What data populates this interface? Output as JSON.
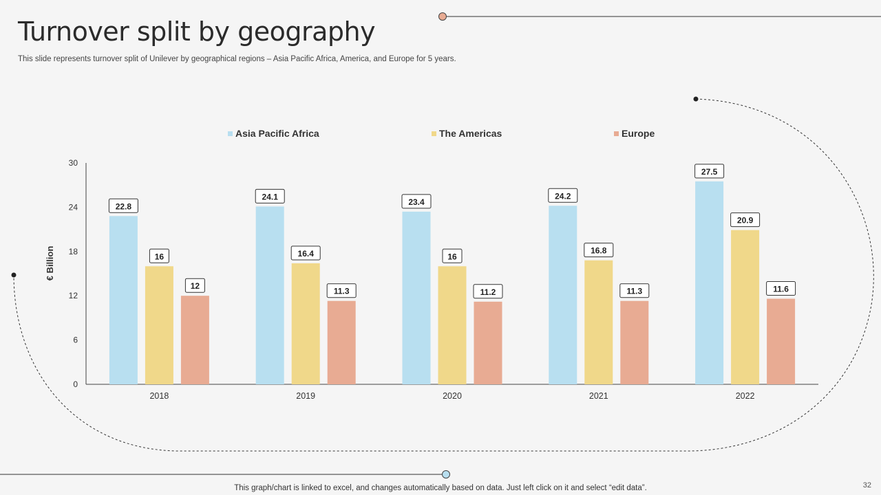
{
  "header": {
    "title": "Turnover split by geography",
    "subtitle": "This slide represents turnover split of Unilever by geographical regions – Asia Pacific Africa, America, and Europe for 5 years."
  },
  "footer": {
    "note": "This graph/chart is linked to excel, and changes automatically based on data. Just left click on it and select “edit data”.",
    "page_number": "32"
  },
  "colors": {
    "asia": "#b8dff0",
    "americas": "#f0d88a",
    "europe": "#e8ab93",
    "deco_dot_top": "#e8ab93",
    "deco_dot_bottom": "#b8dff0"
  },
  "chart_data": {
    "type": "bar",
    "categories": [
      "2018",
      "2019",
      "2020",
      "2021",
      "2022"
    ],
    "series": [
      {
        "name": "Asia Pacific Africa",
        "values": [
          22.8,
          24.1,
          23.4,
          24.2,
          27.5
        ],
        "labels": [
          "22.8",
          "24.1",
          "23.4",
          "24.2",
          "27.5"
        ]
      },
      {
        "name": "The Americas",
        "values": [
          16,
          16.4,
          16,
          16.8,
          20.9
        ],
        "labels": [
          "16",
          "16.4",
          "16",
          "16.8",
          "20.9"
        ]
      },
      {
        "name": "Europe",
        "values": [
          12,
          11.3,
          11.2,
          11.3,
          11.6
        ],
        "labels": [
          "12",
          "11.3",
          "11.2",
          "11.3",
          "11.6"
        ]
      }
    ],
    "ylabel": "€ Billion",
    "xlabel": "",
    "ylim": [
      0,
      30
    ],
    "yticks": [
      "0",
      "6",
      "12",
      "18",
      "24",
      "30"
    ],
    "legend_position": "top"
  }
}
